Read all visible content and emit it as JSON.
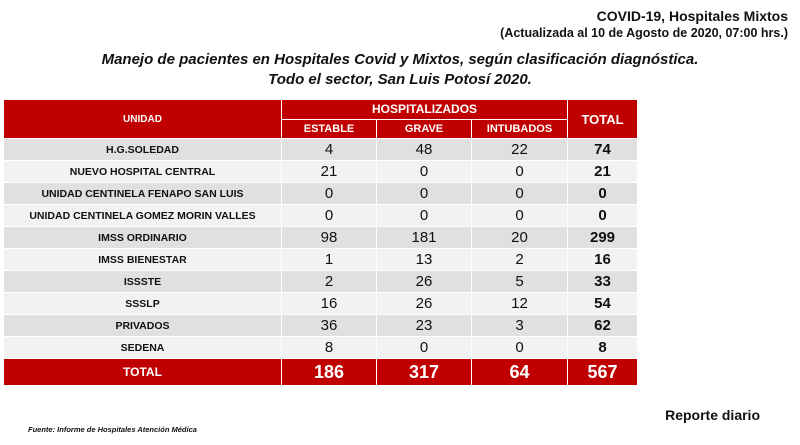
{
  "header": {
    "title": "COVID-19, Hospitales Mixtos",
    "updated": "(Actualizada al 10 de Agosto de 2020, 07:00 hrs.)"
  },
  "subtitle": {
    "line1": "Manejo de pacientes en Hospitales Covid y Mixtos, según clasificación diagnóstica.",
    "line2": "Todo el sector, San Luis Potosí 2020."
  },
  "table": {
    "col_unidad": "UNIDAD",
    "col_group": "HOSPITALIZADOS",
    "col_estable": "ESTABLE",
    "col_grave": "GRAVE",
    "col_intubados": "INTUBADOS",
    "col_total": "TOTAL",
    "rows": [
      {
        "unidad": "H.G.SOLEDAD",
        "estable": "4",
        "grave": "48",
        "intubados": "22",
        "total": "74"
      },
      {
        "unidad": "NUEVO HOSPITAL CENTRAL",
        "estable": "21",
        "grave": "0",
        "intubados": "0",
        "total": "21"
      },
      {
        "unidad": "UNIDAD CENTINELA FENAPO SAN LUIS",
        "estable": "0",
        "grave": "0",
        "intubados": "0",
        "total": "0"
      },
      {
        "unidad": "UNIDAD CENTINELA GOMEZ MORIN VALLES",
        "estable": "0",
        "grave": "0",
        "intubados": "0",
        "total": "0"
      },
      {
        "unidad": "IMSS ORDINARIO",
        "estable": "98",
        "grave": "181",
        "intubados": "20",
        "total": "299"
      },
      {
        "unidad": "IMSS BIENESTAR",
        "estable": "1",
        "grave": "13",
        "intubados": "2",
        "total": "16"
      },
      {
        "unidad": "ISSSTE",
        "estable": "2",
        "grave": "26",
        "intubados": "5",
        "total": "33"
      },
      {
        "unidad": "SSSLP",
        "estable": "16",
        "grave": "26",
        "intubados": "12",
        "total": "54"
      },
      {
        "unidad": "PRIVADOS",
        "estable": "36",
        "grave": "23",
        "intubados": "3",
        "total": "62"
      },
      {
        "unidad": "SEDENA",
        "estable": "8",
        "grave": "0",
        "intubados": "0",
        "total": "8"
      }
    ],
    "totals": {
      "label": "TOTAL",
      "estable": "186",
      "grave": "317",
      "intubados": "64",
      "total": "567"
    }
  },
  "footer": {
    "source": "Fuente: Informe de Hospitales Atención Médica",
    "report": "Reporte diario"
  },
  "colors": {
    "header_red": "#c00000",
    "row_dark": "#e0e0e0",
    "row_light": "#f2f2f2"
  }
}
